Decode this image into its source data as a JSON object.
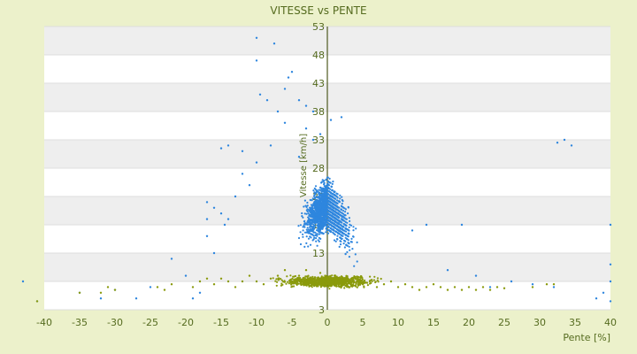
{
  "chart_data": {
    "type": "scatter",
    "title": "VITESSE vs PENTE",
    "xlabel": "Pente [%]",
    "ylabel": "Vitesse [km/h]",
    "xlim": [
      -40,
      40
    ],
    "ylim": [
      3,
      53
    ],
    "x_ticks": [
      -40,
      -35,
      -30,
      -25,
      -20,
      -15,
      -10,
      -5,
      0,
      5,
      10,
      15,
      20,
      25,
      30,
      35,
      40
    ],
    "y_ticks": [
      3,
      8,
      13,
      18,
      23,
      28,
      33,
      38,
      43,
      48,
      53
    ],
    "grid": "alternating horizontal bands",
    "legend": "none",
    "series": [
      {
        "color": "#2e86de",
        "points": [
          [
            -10,
            51
          ],
          [
            -7.5,
            50
          ],
          [
            -10,
            47
          ],
          [
            -5,
            45
          ],
          [
            -5.5,
            44
          ],
          [
            -6,
            42
          ],
          [
            -4,
            40
          ],
          [
            -3,
            39
          ],
          [
            -9.5,
            41
          ],
          [
            -8.5,
            40
          ],
          [
            -7,
            38
          ],
          [
            -2,
            38
          ],
          [
            0.5,
            36.5
          ],
          [
            2,
            37
          ],
          [
            -12,
            31
          ],
          [
            -14,
            32
          ],
          [
            -15,
            31.5
          ],
          [
            -6,
            36
          ],
          [
            -3,
            35
          ],
          [
            -1,
            34
          ],
          [
            -2,
            33
          ],
          [
            -4,
            30
          ],
          [
            -8,
            32
          ],
          [
            -10,
            29
          ],
          [
            -12,
            27
          ],
          [
            -11,
            25
          ],
          [
            -13,
            23
          ],
          [
            -16,
            21
          ],
          [
            -17,
            22
          ],
          [
            -14,
            19
          ],
          [
            -15,
            20
          ],
          [
            -17,
            19
          ],
          [
            -14.5,
            18
          ],
          [
            -17,
            16
          ],
          [
            -16,
            13
          ],
          [
            -22,
            12
          ],
          [
            -20,
            9
          ],
          [
            -18,
            6
          ],
          [
            -19,
            5
          ],
          [
            -27,
            5
          ],
          [
            -32,
            5
          ],
          [
            -43,
            8
          ],
          [
            -41,
            4.5
          ],
          [
            -35,
            6
          ],
          [
            -30,
            6.5
          ],
          [
            -25,
            7
          ],
          [
            32.5,
            32.5
          ],
          [
            33.5,
            33
          ],
          [
            34.5,
            32
          ],
          [
            40,
            18
          ],
          [
            40,
            11
          ],
          [
            40,
            8
          ],
          [
            38,
            5
          ],
          [
            40,
            4.5
          ],
          [
            39,
            6
          ],
          [
            12,
            17
          ],
          [
            14,
            18
          ],
          [
            19,
            18
          ],
          [
            17,
            10
          ],
          [
            21,
            9
          ],
          [
            26,
            8
          ],
          [
            29,
            7.5
          ],
          [
            32,
            7
          ],
          [
            23,
            7
          ]
        ]
      },
      {
        "color": "#8a9a0c",
        "points": [
          [
            -41,
            4.5
          ],
          [
            -35,
            6
          ],
          [
            -32,
            6
          ],
          [
            -31,
            7
          ],
          [
            -30,
            6.5
          ],
          [
            -24,
            7
          ],
          [
            -23,
            6.5
          ],
          [
            -22,
            7.5
          ],
          [
            -19,
            7
          ],
          [
            -18,
            8
          ],
          [
            -17,
            8.5
          ],
          [
            -16,
            7.5
          ],
          [
            -15,
            8.5
          ],
          [
            -14,
            8
          ],
          [
            -13,
            7
          ],
          [
            -12,
            8
          ],
          [
            -11,
            9
          ],
          [
            -10,
            8
          ],
          [
            -9,
            7.5
          ],
          [
            -8,
            8.5
          ],
          [
            -7,
            9
          ],
          [
            -6,
            10
          ],
          [
            -5,
            8
          ],
          [
            -4,
            9
          ],
          [
            -3,
            10
          ],
          [
            -2,
            8.5
          ],
          [
            -1,
            9.5
          ],
          [
            0,
            8
          ],
          [
            1,
            7.5
          ],
          [
            2,
            8
          ],
          [
            3,
            7
          ],
          [
            4,
            8.5
          ],
          [
            5,
            7.5
          ],
          [
            6,
            8
          ],
          [
            7,
            7
          ],
          [
            8,
            7.5
          ],
          [
            9,
            8
          ],
          [
            10,
            7
          ],
          [
            11,
            7.5
          ],
          [
            12,
            7
          ],
          [
            13,
            6.5
          ],
          [
            14,
            7
          ],
          [
            15,
            7.5
          ],
          [
            16,
            7
          ],
          [
            17,
            6.5
          ],
          [
            18,
            7
          ],
          [
            19,
            6.5
          ],
          [
            20,
            7
          ],
          [
            21,
            6.5
          ],
          [
            22,
            7
          ],
          [
            23,
            6.5
          ],
          [
            24,
            7
          ],
          [
            25,
            6.8
          ],
          [
            29,
            7
          ],
          [
            31,
            7.5
          ],
          [
            32,
            7.5
          ]
        ]
      }
    ]
  }
}
